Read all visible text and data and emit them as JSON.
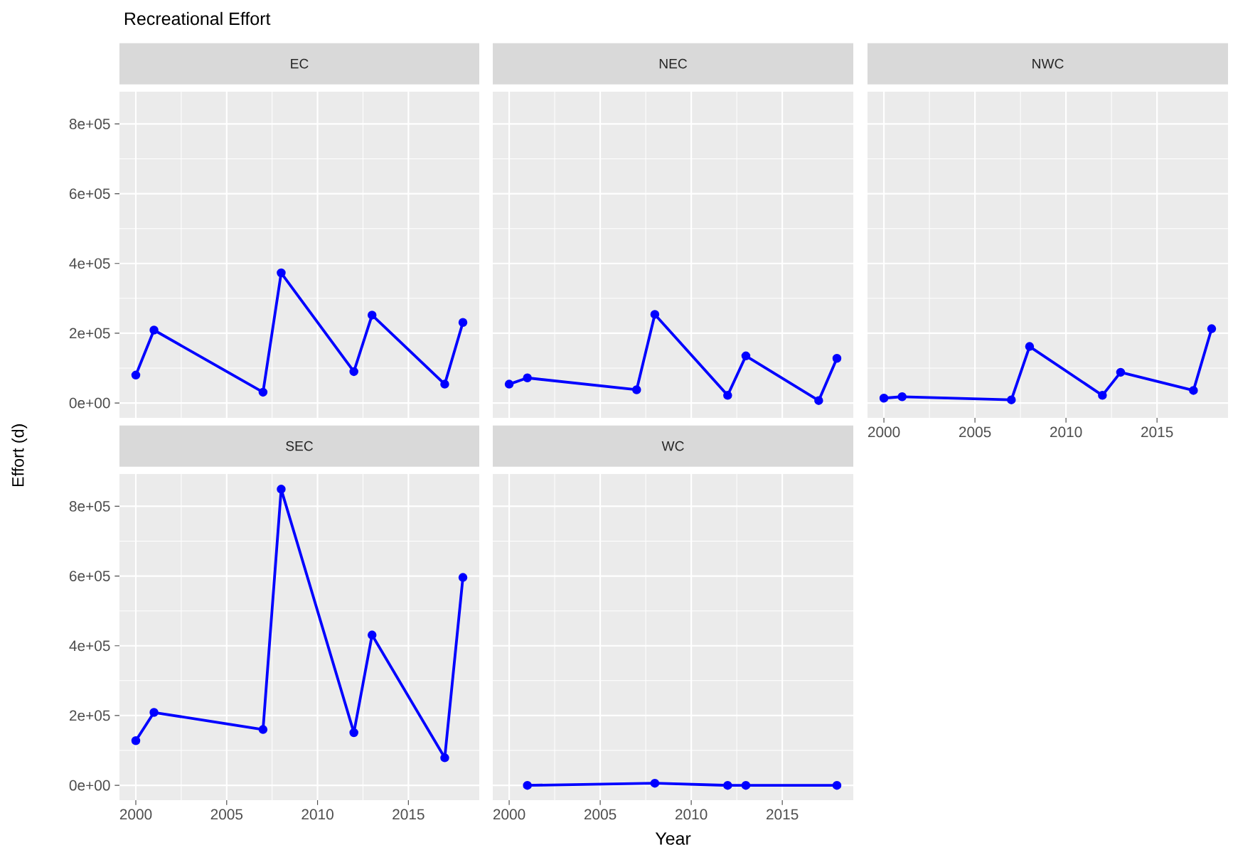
{
  "chart_data": [
    {
      "type": "line",
      "title": "Recreational Effort",
      "subtitle": "EC",
      "tick_labels": "y",
      "grid": true,
      "marker": "circle",
      "xlim": [
        1999.1,
        2018.9
      ],
      "ylim": [
        -42500,
        892500
      ],
      "xticks": [
        {
          "value": 2000,
          "label": null
        },
        {
          "value": 2005,
          "label": null
        },
        {
          "value": 2010,
          "label": null
        },
        {
          "value": 2015,
          "label": null
        }
      ],
      "yticks": [
        {
          "value": 0,
          "label": "0e+00"
        },
        {
          "value": 200000,
          "label": "2e+05"
        },
        {
          "value": 400000,
          "label": "4e+05"
        },
        {
          "value": 600000,
          "label": "6e+05"
        },
        {
          "value": 800000,
          "label": "8e+05"
        }
      ],
      "series": [
        {
          "color": "#0000ff",
          "x": [
            2000,
            2001,
            2007,
            2008,
            2012,
            2013,
            2017,
            2018
          ],
          "values": [
            80000,
            209000,
            31000,
            373000,
            90000,
            252000,
            54000,
            231000
          ]
        }
      ]
    },
    {
      "type": "line",
      "subtitle": "NEC",
      "tick_labels": false,
      "grid": true,
      "marker": "circle",
      "xlim": [
        1999.1,
        2018.9
      ],
      "ylim": [
        -42500,
        892500
      ],
      "xticks": [
        {
          "value": 2000,
          "label": null
        },
        {
          "value": 2005,
          "label": null
        },
        {
          "value": 2010,
          "label": null
        },
        {
          "value": 2015,
          "label": null
        }
      ],
      "yticks": [
        {
          "value": 0,
          "label": null
        },
        {
          "value": 200000,
          "label": null
        },
        {
          "value": 400000,
          "label": null
        },
        {
          "value": 600000,
          "label": null
        },
        {
          "value": 800000,
          "label": null
        }
      ],
      "series": [
        {
          "color": "#0000ff",
          "x": [
            2000,
            2001,
            2007,
            2008,
            2012,
            2013,
            2017,
            2018
          ],
          "values": [
            54000,
            72000,
            38000,
            254000,
            22000,
            135000,
            7000,
            128000
          ]
        }
      ]
    },
    {
      "type": "line",
      "subtitle": "NWC",
      "tick_labels": "x",
      "grid": true,
      "marker": "circle",
      "xlim": [
        1999.1,
        2018.9
      ],
      "ylim": [
        -42500,
        892500
      ],
      "xticks": [
        2000,
        2005,
        2010,
        2015
      ],
      "yticks": [
        {
          "value": 0,
          "label": null
        },
        {
          "value": 200000,
          "label": null
        },
        {
          "value": 400000,
          "label": null
        },
        {
          "value": 600000,
          "label": null
        },
        {
          "value": 800000,
          "label": null
        }
      ],
      "series": [
        {
          "color": "#0000ff",
          "x": [
            2000,
            2001,
            2007,
            2008,
            2012,
            2013,
            2017,
            2018
          ],
          "values": [
            14000,
            18000,
            9000,
            162000,
            22000,
            88000,
            36000,
            213000
          ]
        }
      ]
    },
    {
      "type": "line",
      "subtitle": "SEC",
      "ylabel": "Effort (d)",
      "grid": true,
      "marker": "circle",
      "xlim": [
        1999.1,
        2018.9
      ],
      "ylim": [
        -42500,
        892500
      ],
      "xticks": [
        2000,
        2005,
        2010,
        2015
      ],
      "yticks": [
        {
          "value": 0,
          "label": "0e+00"
        },
        {
          "value": 200000,
          "label": "2e+05"
        },
        {
          "value": 400000,
          "label": "4e+05"
        },
        {
          "value": 600000,
          "label": "6e+05"
        },
        {
          "value": 800000,
          "label": "8e+05"
        }
      ],
      "series": [
        {
          "color": "#0000ff",
          "x": [
            2000,
            2001,
            2007,
            2008,
            2012,
            2013,
            2017,
            2018
          ],
          "values": [
            128000,
            209000,
            160000,
            849000,
            151000,
            431000,
            79000,
            596000
          ]
        }
      ]
    },
    {
      "type": "line",
      "subtitle": "WC",
      "xlabel": "Year",
      "tick_labels": "x",
      "grid": true,
      "marker": "circle",
      "xlim": [
        1999.1,
        2018.9
      ],
      "ylim": [
        -42500,
        892500
      ],
      "xticks": [
        2000,
        2005,
        2010,
        2015
      ],
      "yticks": [
        {
          "value": 0,
          "label": null
        },
        {
          "value": 200000,
          "label": null
        },
        {
          "value": 400000,
          "label": null
        },
        {
          "value": 600000,
          "label": null
        },
        {
          "value": 800000,
          "label": null
        }
      ],
      "series": [
        {
          "color": "#0000ff",
          "x": [
            2001,
            2008,
            2012,
            2013,
            2018
          ],
          "values": [
            0,
            6000,
            0,
            0,
            0
          ]
        }
      ]
    }
  ]
}
